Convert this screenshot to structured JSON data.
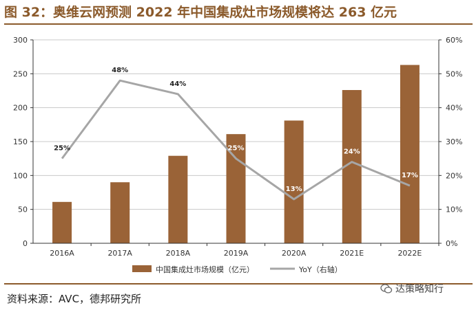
{
  "title": "图 32：奥维云网预测 2022 年中国集成灶市场规模将达 263 亿元",
  "source": "资料来源：AVC，德邦研究所",
  "watermark": "达策略知行",
  "colors": {
    "bar": "#9a6337",
    "line": "#a6a6a6",
    "title": "#8b5a2b"
  },
  "chart_data": {
    "type": "bar",
    "categories": [
      "2016A",
      "2017A",
      "2018A",
      "2019A",
      "2020A",
      "2021E",
      "2022E"
    ],
    "series": [
      {
        "name": "中国集成灶市场规模（亿元）",
        "type": "bar",
        "axis": "left",
        "values": [
          61,
          90,
          129,
          161,
          181,
          226,
          263
        ]
      },
      {
        "name": "YoY（右轴）",
        "type": "line",
        "axis": "right",
        "values": [
          25,
          48,
          44,
          25,
          13,
          24,
          17
        ],
        "labels": [
          "25%",
          "48%",
          "44%",
          "25%",
          "13%",
          "24%",
          "17%"
        ]
      }
    ],
    "ylim_left": [
      0,
      300
    ],
    "yticks_left": [
      "0",
      "50",
      "100",
      "150",
      "200",
      "250",
      "300"
    ],
    "ylim_right": [
      0,
      60
    ],
    "yticks_right": [
      "0%",
      "10%",
      "20%",
      "30%",
      "40%",
      "50%",
      "60%"
    ],
    "grid": true,
    "legend_position": "bottom"
  }
}
